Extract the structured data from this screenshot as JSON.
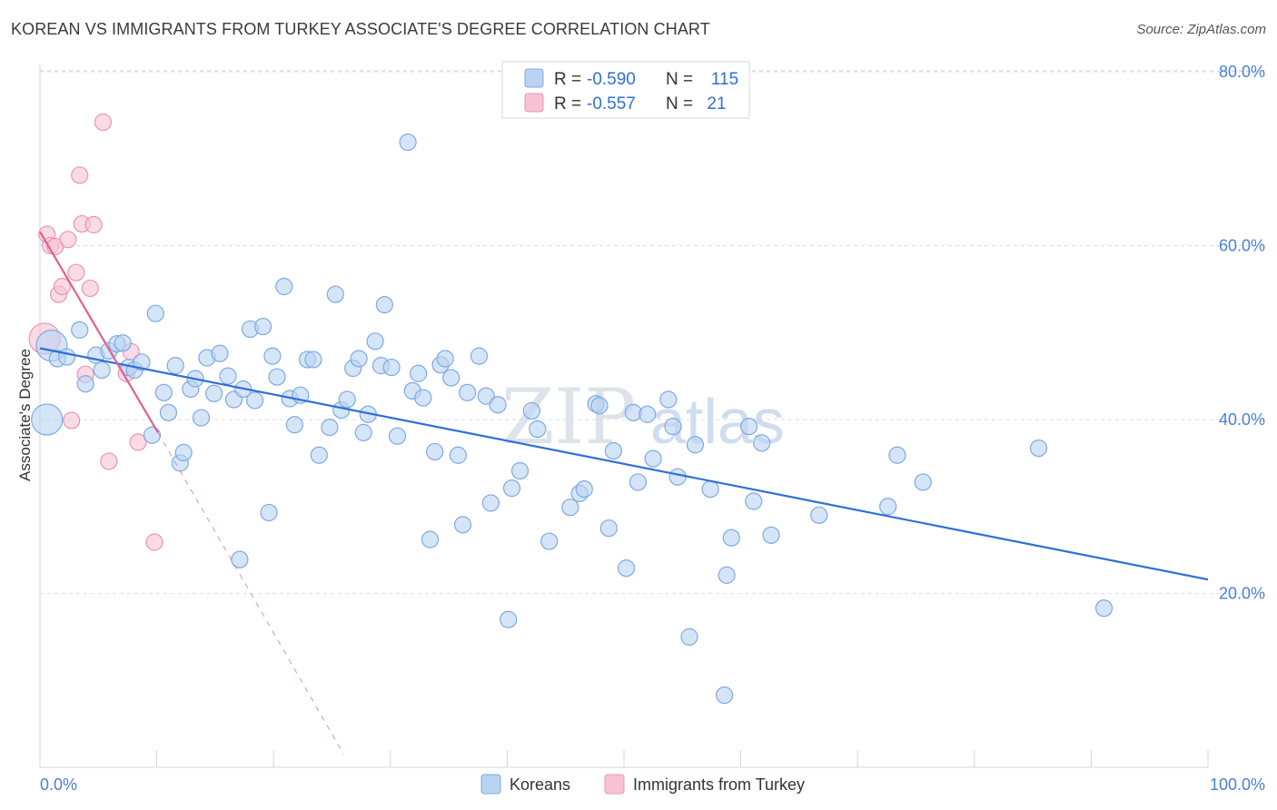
{
  "title": "KOREAN VS IMMIGRANTS FROM TURKEY ASSOCIATE'S DEGREE CORRELATION CHART",
  "source": "Source: ZipAtlas.com",
  "watermark": {
    "zip": "ZIP",
    "atlas": "atlas"
  },
  "colors": {
    "blue_fill": "#b9d3f3",
    "blue_stroke": "#7fa9e0",
    "blue_line": "#2f6fd6",
    "pink_fill": "#f7c3d4",
    "pink_stroke": "#ec94b2",
    "pink_line": "#e0608e",
    "grid": "#d8dde4",
    "axis_label": "#4a7fd4"
  },
  "legend": {
    "rows": [
      {
        "r_label": "R =",
        "r_value": "-0.590",
        "n_label": "N =",
        "n_value": "115"
      },
      {
        "r_label": "R =",
        "r_value": "-0.557",
        "n_label": "N =",
        "n_value": "21"
      }
    ]
  },
  "chart_data": {
    "type": "scatter",
    "title": "KOREAN VS IMMIGRANTS FROM TURKEY ASSOCIATE'S DEGREE CORRELATION CHART",
    "xlabel": "",
    "ylabel": "Associate's Degree",
    "xlim": [
      0,
      100
    ],
    "ylim": [
      0,
      82
    ],
    "x_tick_labels": [
      "0.0%",
      "100.0%"
    ],
    "y_ticks": [
      20,
      40,
      60,
      80
    ],
    "y_tick_labels": [
      "20.0%",
      "40.0%",
      "60.0%",
      "80.0%"
    ],
    "grid": true,
    "legend_position": "top-center",
    "series": [
      {
        "name": "Koreans",
        "color": "blue",
        "trend": {
          "x0": 0,
          "y0": 48.2,
          "x1": 100,
          "y1": 21.6,
          "style": "solid"
        },
        "points": [
          {
            "x": 0.6,
            "y": 40.0,
            "big": true
          },
          {
            "x": 1.0,
            "y": 48.5,
            "big": true
          },
          {
            "x": 1.5,
            "y": 47.0
          },
          {
            "x": 2.3,
            "y": 47.2
          },
          {
            "x": 3.4,
            "y": 50.3
          },
          {
            "x": 3.9,
            "y": 44.1
          },
          {
            "x": 4.8,
            "y": 47.4
          },
          {
            "x": 5.3,
            "y": 45.7
          },
          {
            "x": 5.9,
            "y": 47.9
          },
          {
            "x": 6.6,
            "y": 48.7
          },
          {
            "x": 7.1,
            "y": 48.8
          },
          {
            "x": 7.6,
            "y": 46.0
          },
          {
            "x": 8.1,
            "y": 45.7
          },
          {
            "x": 8.7,
            "y": 46.6
          },
          {
            "x": 9.6,
            "y": 38.2
          },
          {
            "x": 9.9,
            "y": 52.2
          },
          {
            "x": 10.6,
            "y": 43.1
          },
          {
            "x": 11.0,
            "y": 40.8
          },
          {
            "x": 11.6,
            "y": 46.2
          },
          {
            "x": 12.0,
            "y": 35.0
          },
          {
            "x": 12.3,
            "y": 36.2
          },
          {
            "x": 12.9,
            "y": 43.5
          },
          {
            "x": 13.3,
            "y": 44.7
          },
          {
            "x": 13.8,
            "y": 40.2
          },
          {
            "x": 14.3,
            "y": 47.1
          },
          {
            "x": 14.9,
            "y": 43.0
          },
          {
            "x": 15.4,
            "y": 47.6
          },
          {
            "x": 16.1,
            "y": 45.0
          },
          {
            "x": 16.6,
            "y": 42.3
          },
          {
            "x": 17.1,
            "y": 23.9
          },
          {
            "x": 17.4,
            "y": 43.5
          },
          {
            "x": 18.0,
            "y": 50.4
          },
          {
            "x": 18.4,
            "y": 42.2
          },
          {
            "x": 19.1,
            "y": 50.7
          },
          {
            "x": 19.6,
            "y": 29.3
          },
          {
            "x": 19.9,
            "y": 47.3
          },
          {
            "x": 20.3,
            "y": 44.9
          },
          {
            "x": 20.9,
            "y": 55.3
          },
          {
            "x": 21.4,
            "y": 42.4
          },
          {
            "x": 21.8,
            "y": 39.4
          },
          {
            "x": 22.3,
            "y": 42.8
          },
          {
            "x": 22.9,
            "y": 46.9
          },
          {
            "x": 23.4,
            "y": 46.9
          },
          {
            "x": 23.9,
            "y": 35.9
          },
          {
            "x": 24.8,
            "y": 39.1
          },
          {
            "x": 25.3,
            "y": 54.4
          },
          {
            "x": 25.8,
            "y": 41.1
          },
          {
            "x": 26.3,
            "y": 42.3
          },
          {
            "x": 26.8,
            "y": 45.9
          },
          {
            "x": 27.3,
            "y": 47.0
          },
          {
            "x": 27.7,
            "y": 38.5
          },
          {
            "x": 28.1,
            "y": 40.6
          },
          {
            "x": 28.7,
            "y": 49.0
          },
          {
            "x": 29.2,
            "y": 46.2
          },
          {
            "x": 29.5,
            "y": 53.2
          },
          {
            "x": 30.1,
            "y": 46.0
          },
          {
            "x": 30.6,
            "y": 38.1
          },
          {
            "x": 31.5,
            "y": 71.9
          },
          {
            "x": 31.9,
            "y": 43.3
          },
          {
            "x": 32.4,
            "y": 45.3
          },
          {
            "x": 32.8,
            "y": 42.5
          },
          {
            "x": 33.4,
            "y": 26.2
          },
          {
            "x": 33.8,
            "y": 36.3
          },
          {
            "x": 34.3,
            "y": 46.3
          },
          {
            "x": 34.7,
            "y": 47.0
          },
          {
            "x": 35.2,
            "y": 44.8
          },
          {
            "x": 35.8,
            "y": 35.9
          },
          {
            "x": 36.2,
            "y": 27.9
          },
          {
            "x": 36.6,
            "y": 43.1
          },
          {
            "x": 37.6,
            "y": 47.3
          },
          {
            "x": 38.2,
            "y": 42.7
          },
          {
            "x": 38.6,
            "y": 30.4
          },
          {
            "x": 39.2,
            "y": 41.7
          },
          {
            "x": 40.1,
            "y": 17.0
          },
          {
            "x": 40.4,
            "y": 32.1
          },
          {
            "x": 41.1,
            "y": 34.1
          },
          {
            "x": 42.1,
            "y": 41.0
          },
          {
            "x": 42.6,
            "y": 38.9
          },
          {
            "x": 43.6,
            "y": 26.0
          },
          {
            "x": 45.4,
            "y": 29.9
          },
          {
            "x": 46.2,
            "y": 31.5
          },
          {
            "x": 46.6,
            "y": 32.0
          },
          {
            "x": 47.6,
            "y": 41.8
          },
          {
            "x": 47.9,
            "y": 41.6
          },
          {
            "x": 48.7,
            "y": 27.5
          },
          {
            "x": 49.1,
            "y": 36.4
          },
          {
            "x": 50.2,
            "y": 22.9
          },
          {
            "x": 50.8,
            "y": 40.8
          },
          {
            "x": 51.2,
            "y": 32.8
          },
          {
            "x": 52.0,
            "y": 40.6
          },
          {
            "x": 52.5,
            "y": 35.5
          },
          {
            "x": 53.8,
            "y": 42.3
          },
          {
            "x": 54.2,
            "y": 39.2
          },
          {
            "x": 54.6,
            "y": 33.4
          },
          {
            "x": 55.6,
            "y": 15.0
          },
          {
            "x": 56.1,
            "y": 37.1
          },
          {
            "x": 57.4,
            "y": 32.0
          },
          {
            "x": 58.6,
            "y": 8.3
          },
          {
            "x": 58.8,
            "y": 22.1
          },
          {
            "x": 59.2,
            "y": 26.4
          },
          {
            "x": 60.7,
            "y": 39.2
          },
          {
            "x": 61.1,
            "y": 30.6
          },
          {
            "x": 61.8,
            "y": 37.3
          },
          {
            "x": 62.6,
            "y": 26.7
          },
          {
            "x": 66.7,
            "y": 29.0
          },
          {
            "x": 72.6,
            "y": 30.0
          },
          {
            "x": 73.4,
            "y": 35.9
          },
          {
            "x": 75.6,
            "y": 32.8
          },
          {
            "x": 85.5,
            "y": 36.7
          },
          {
            "x": 91.1,
            "y": 18.3
          }
        ]
      },
      {
        "name": "Immigrants from Turkey",
        "color": "pink",
        "trend": {
          "x0": 0,
          "y0": 61.6,
          "x1": 10.1,
          "y1": 38.5,
          "style": "solid",
          "extension": {
            "x0": 10.1,
            "y0": 38.5,
            "x1": 26.0,
            "y1": 1.5,
            "style": "dashed"
          }
        },
        "points": [
          {
            "x": 0.4,
            "y": 49.3,
            "big": true
          },
          {
            "x": 0.6,
            "y": 61.3
          },
          {
            "x": 0.9,
            "y": 60.0
          },
          {
            "x": 1.3,
            "y": 59.9
          },
          {
            "x": 1.6,
            "y": 54.4
          },
          {
            "x": 1.9,
            "y": 55.3
          },
          {
            "x": 2.4,
            "y": 60.7
          },
          {
            "x": 2.7,
            "y": 39.9
          },
          {
            "x": 3.1,
            "y": 56.9
          },
          {
            "x": 3.4,
            "y": 68.1
          },
          {
            "x": 3.6,
            "y": 62.5
          },
          {
            "x": 3.9,
            "y": 45.2
          },
          {
            "x": 4.3,
            "y": 55.1
          },
          {
            "x": 4.6,
            "y": 62.4
          },
          {
            "x": 5.4,
            "y": 74.2
          },
          {
            "x": 5.9,
            "y": 35.2
          },
          {
            "x": 7.4,
            "y": 45.3
          },
          {
            "x": 7.8,
            "y": 47.8
          },
          {
            "x": 8.4,
            "y": 37.4
          },
          {
            "x": 9.8,
            "y": 25.9
          }
        ]
      }
    ]
  }
}
